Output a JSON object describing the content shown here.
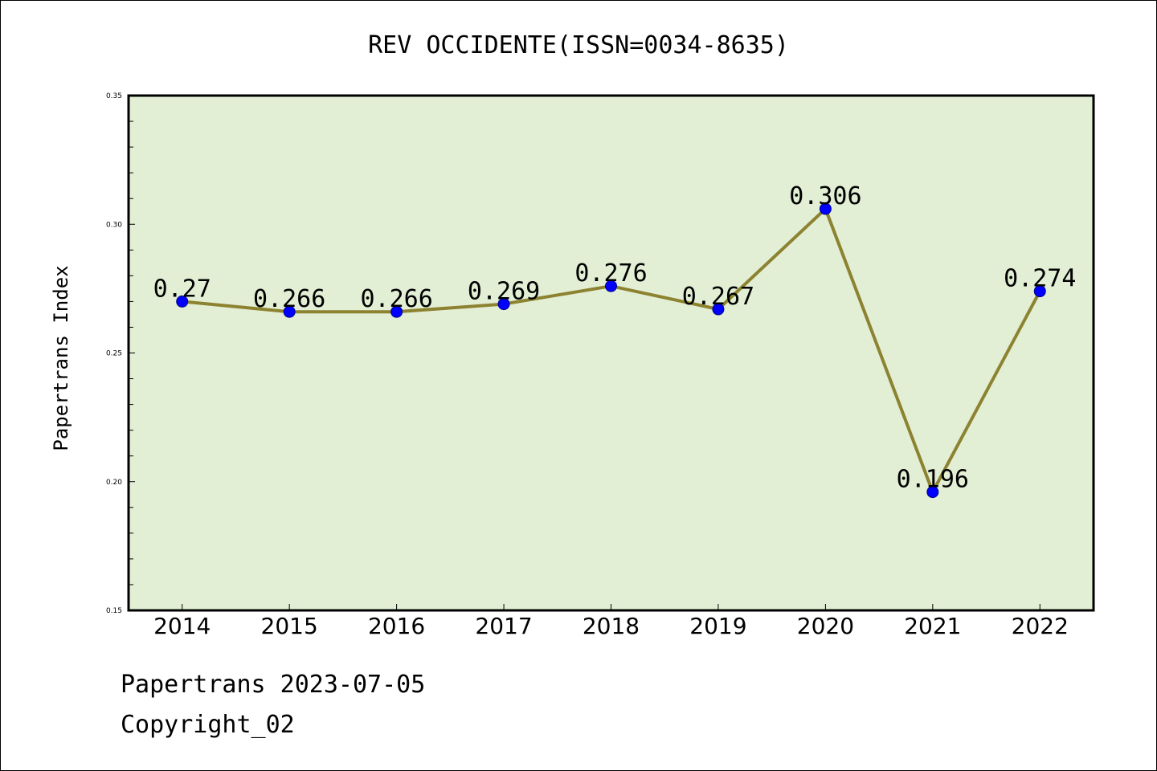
{
  "chart_data": {
    "type": "line",
    "title": "REV OCCIDENTE(ISSN=0034-8635)",
    "xlabel": "",
    "ylabel": "Papertrans Index",
    "categories": [
      "2014",
      "2015",
      "2016",
      "2017",
      "2018",
      "2019",
      "2020",
      "2021",
      "2022"
    ],
    "series": [
      {
        "values": [
          0.27,
          0.266,
          0.266,
          0.269,
          0.276,
          0.267,
          0.306,
          0.196,
          0.274
        ]
      }
    ],
    "data_labels": [
      "0.27",
      "0.266",
      "0.266",
      "0.269",
      "0.276",
      "0.267",
      "0.306",
      "0.196",
      "0.274"
    ],
    "ylim": [
      0.15,
      0.35
    ],
    "yticks": [
      "0.15",
      "0.20",
      "0.25",
      "0.30",
      "0.35"
    ],
    "grid": false,
    "legend": "none",
    "colors": {
      "plot_background": "#e2efd5",
      "line": "#8c8230",
      "marker": "#0000ff",
      "marker_edge": "#00008b",
      "axes": "#000000"
    }
  },
  "footer": {
    "source": "Papertrans 2023-07-05",
    "copyright": "Copyright_02"
  }
}
